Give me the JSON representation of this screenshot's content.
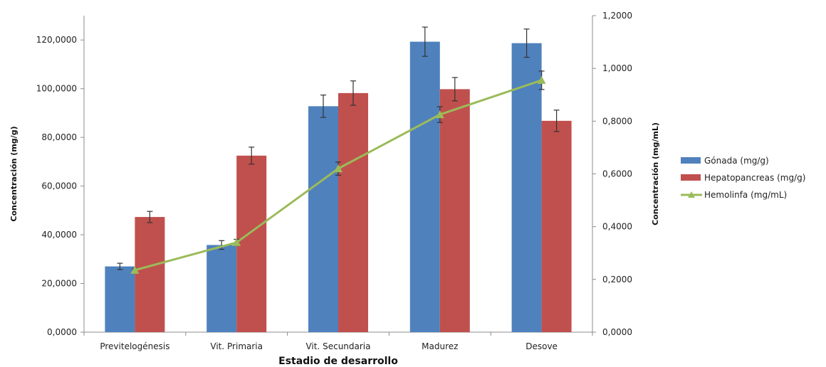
{
  "chart_data": {
    "type": "bar",
    "categories": [
      "Previtelogénesis",
      "Vit. Primaria",
      "Vit. Secundaria",
      "Madurez",
      "Desove"
    ],
    "series": [
      {
        "name": "Gónada (mg/g)",
        "kind": "bar",
        "axis": "left",
        "color": "#4f81bd",
        "values": [
          27,
          35.8,
          92.8,
          119.3,
          118.7
        ],
        "errors": [
          1.3,
          1.8,
          4.6,
          6.0,
          5.8
        ]
      },
      {
        "name": "Hepatopancreas (mg/g)",
        "kind": "bar",
        "axis": "left",
        "color": "#c0504d",
        "values": [
          47.3,
          72.5,
          98.2,
          99.8,
          86.8
        ],
        "errors": [
          2.3,
          3.5,
          5.0,
          4.8,
          4.4
        ]
      },
      {
        "name": "Hemolinfa (mg/mL)",
        "kind": "line",
        "axis": "right",
        "color": "#9bbb59",
        "values": [
          0.235,
          0.34,
          0.62,
          0.825,
          0.955
        ],
        "errors": [
          0.005,
          0.012,
          0.025,
          0.03,
          0.035
        ]
      }
    ],
    "xlabel": "Estadio de desarrollo",
    "ylabel": "Concentración (mg/g)",
    "y2label": "Concentración (mg/mL)",
    "ylim": [
      0,
      130
    ],
    "y2lim": [
      0,
      1.2
    ],
    "yticks": [
      "0,0000",
      "20,0000",
      "40,0000",
      "60,0000",
      "80,0000",
      "100,0000",
      "120,0000"
    ],
    "y2ticks": [
      "0,0000",
      "0,2000",
      "0,4000",
      "0,6000",
      "0,8000",
      "1,0000",
      "1,2000"
    ],
    "legend_position": "right",
    "grid": false
  }
}
